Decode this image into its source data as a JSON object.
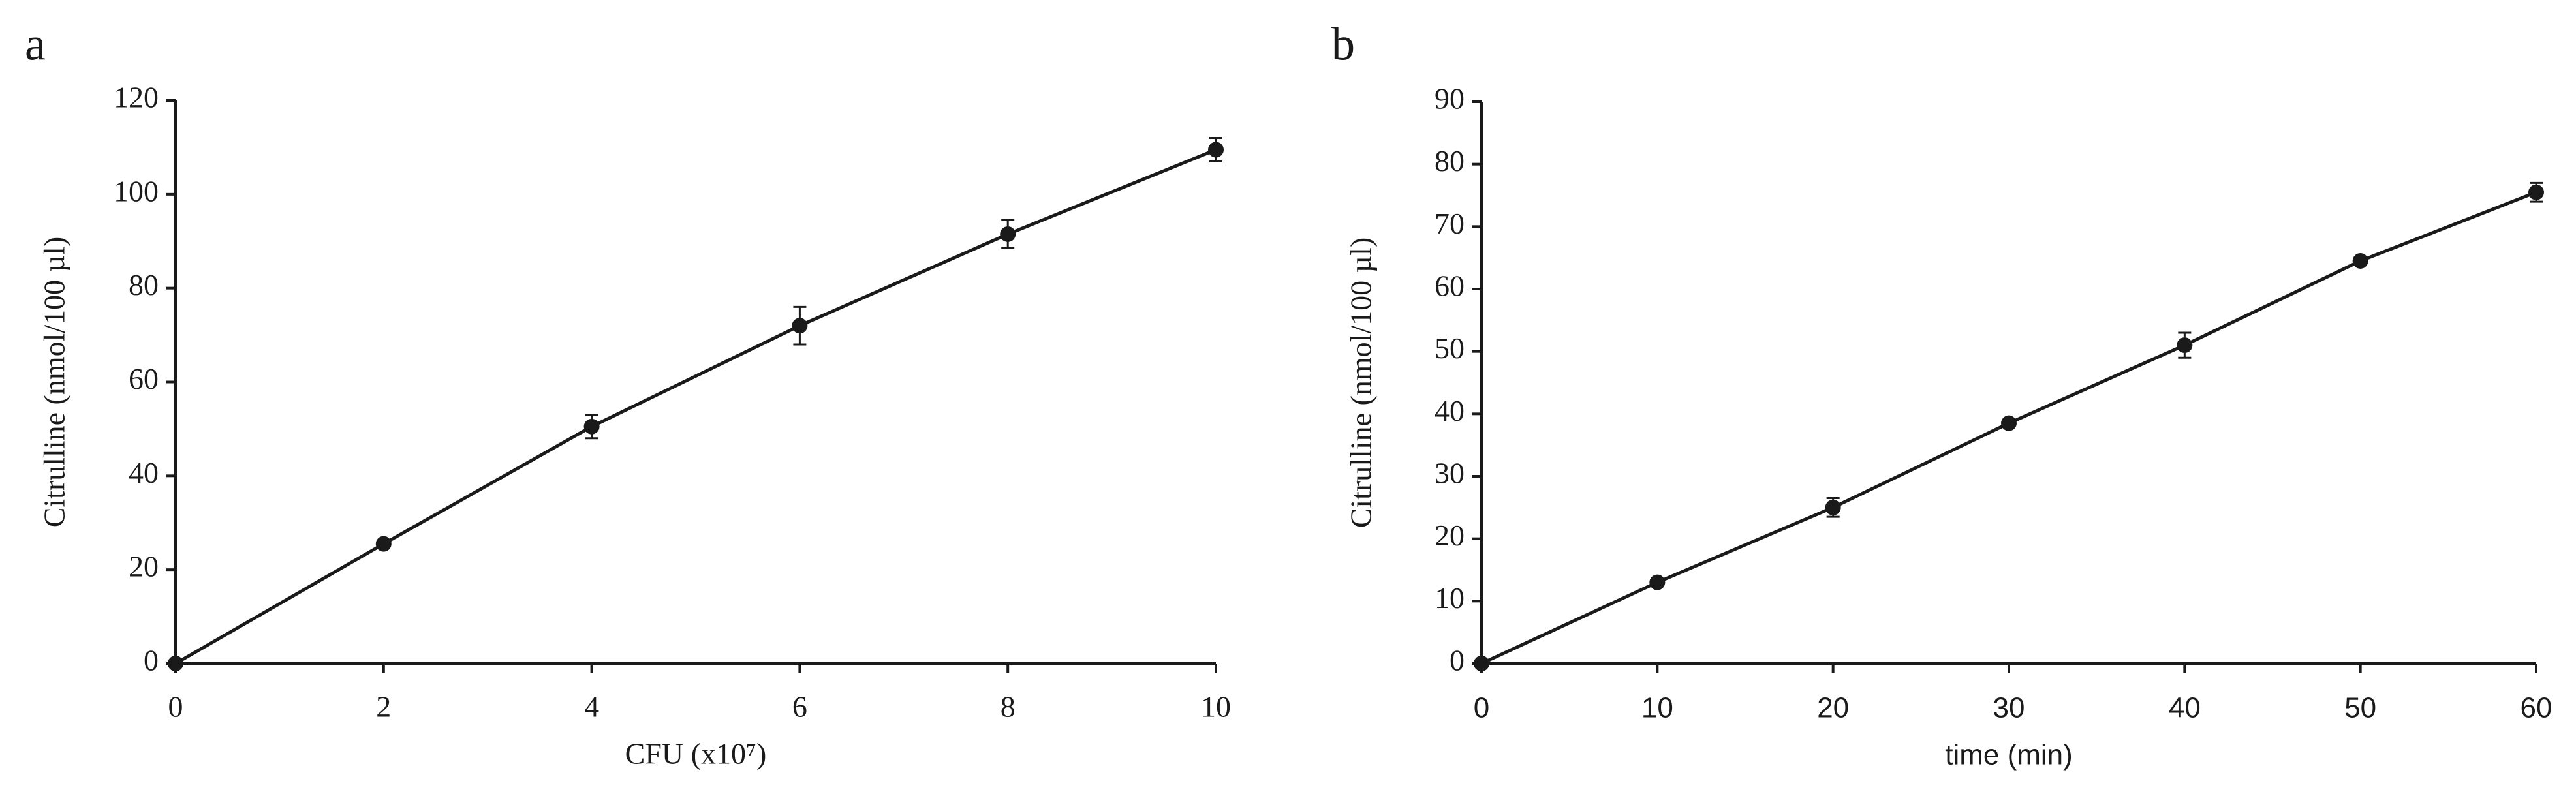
{
  "chart_data": [
    {
      "type": "line",
      "panel_label": "a",
      "x_label": "CFU (x10⁷)",
      "y_label": "Citrulline (nmol/100 µl)",
      "x": [
        0,
        2,
        4,
        6,
        8,
        10
      ],
      "series": [
        {
          "color": "#1a1a1a",
          "values": [
            0,
            25.5,
            50.5,
            72,
            91.5,
            109.5
          ],
          "errors": [
            0,
            0.5,
            2.5,
            4,
            3,
            2.5
          ]
        }
      ],
      "xlim": [
        0,
        10
      ],
      "xticks": [
        0,
        2,
        4,
        6,
        8,
        10
      ],
      "ylim": [
        0,
        120
      ],
      "yticks": [
        0,
        20,
        40,
        60,
        80,
        100,
        120
      ],
      "grid": false
    },
    {
      "type": "line",
      "panel_label": "b",
      "x_label": "time (min)",
      "y_label": "Citrulline (nmol/100 µl)",
      "x": [
        0,
        10,
        20,
        30,
        40,
        50,
        60
      ],
      "series": [
        {
          "color": "#1a1a1a",
          "values": [
            0,
            13,
            25,
            38.5,
            51,
            64.5,
            75.5
          ],
          "errors": [
            0,
            0.5,
            1.5,
            0.5,
            2,
            0.5,
            1.5
          ]
        }
      ],
      "xlim": [
        0,
        60
      ],
      "xticks": [
        0,
        10,
        20,
        30,
        40,
        50,
        60
      ],
      "ylim": [
        0,
        90
      ],
      "yticks": [
        0,
        10,
        20,
        30,
        40,
        50,
        60,
        70,
        80,
        90
      ],
      "grid": false
    }
  ]
}
